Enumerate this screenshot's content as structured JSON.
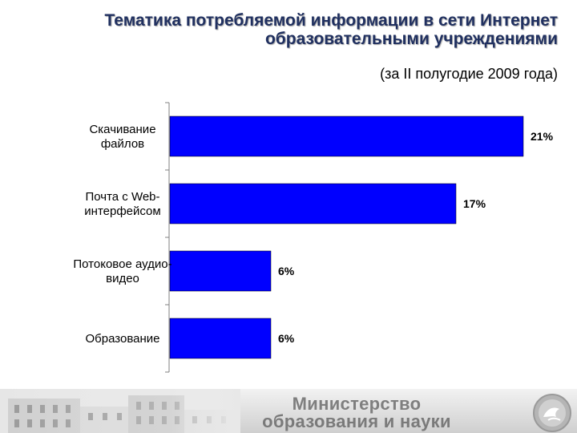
{
  "header": {
    "title_line1": "Тематика потребляемой информации в сети Интернет",
    "title_line2": "образовательными учреждениями",
    "subtitle": "(за II полугодие 2009 года)"
  },
  "chart_data": {
    "type": "bar",
    "orientation": "horizontal",
    "categories": [
      [
        "Скачивание",
        "файлов"
      ],
      [
        "Почта с Web-",
        "интерфейсом"
      ],
      [
        "Потоковое аудио-",
        "видео"
      ],
      [
        "Образование"
      ]
    ],
    "values": [
      21,
      17,
      6,
      6
    ],
    "value_labels": [
      "21%",
      "17%",
      "6%",
      "6%"
    ],
    "unit": "%",
    "xlim": [
      0,
      25
    ],
    "bar_color": "#0000ff",
    "grid": false
  },
  "footer": {
    "ministry_line1": "Министерство",
    "ministry_line2": "образования и науки"
  }
}
